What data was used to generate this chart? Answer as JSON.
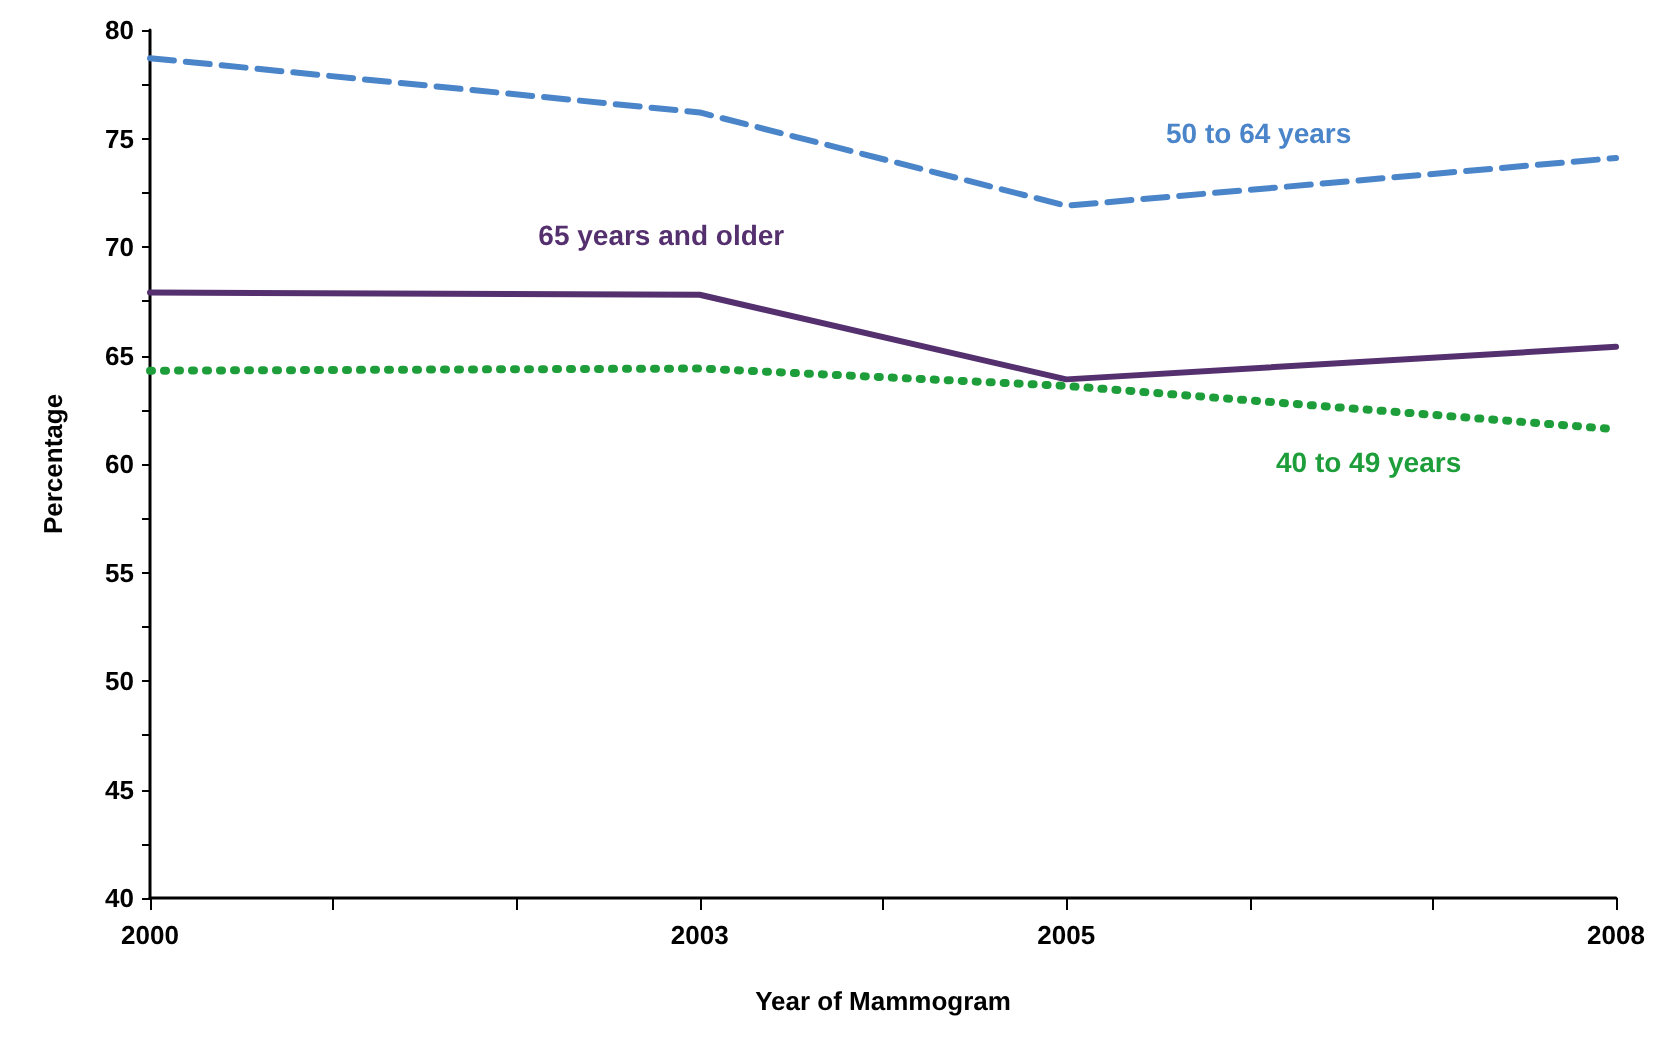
{
  "chart_data": {
    "type": "line",
    "xlabel": "Year of Mammogram",
    "ylabel": "Percentage",
    "x": [
      2000,
      2003,
      2005,
      2008
    ],
    "xlim": [
      2000,
      2008
    ],
    "xticks": [
      2000,
      {
        "value": 2001,
        "label": null
      },
      {
        "value": 2002,
        "label": null
      },
      2003,
      {
        "value": 2004,
        "label": null
      },
      2005,
      {
        "value": 2006,
        "label": null
      },
      {
        "value": 2007,
        "label": null
      },
      2008
    ],
    "ylim": [
      40,
      80
    ],
    "yticks": [
      40,
      {
        "value": 42.5,
        "label": null
      },
      45,
      {
        "value": 47.5,
        "label": null
      },
      50,
      {
        "value": 52.5,
        "label": null
      },
      55,
      {
        "value": 57.5,
        "label": null
      },
      60,
      {
        "value": 62.5,
        "label": null
      },
      65,
      {
        "value": 67.5,
        "label": null
      },
      70,
      {
        "value": 72.5,
        "label": null
      },
      75,
      {
        "value": 77.5,
        "label": null
      },
      80
    ],
    "grid": false,
    "legend": false,
    "marker": "none",
    "series": [
      {
        "name": "50 to 64 years",
        "color": "#4a84c9",
        "line_style": "dashed",
        "values": [
          78.7,
          76.2,
          71.9,
          74.1
        ]
      },
      {
        "name": "65 years and older",
        "color": "#55306f",
        "line_style": "solid",
        "values": [
          67.9,
          67.8,
          63.9,
          65.4
        ]
      },
      {
        "name": "40 to 49 years",
        "color": "#1e9e3a",
        "line_style": "dotted",
        "values": [
          64.3,
          64.4,
          63.6,
          61.6
        ]
      }
    ]
  }
}
